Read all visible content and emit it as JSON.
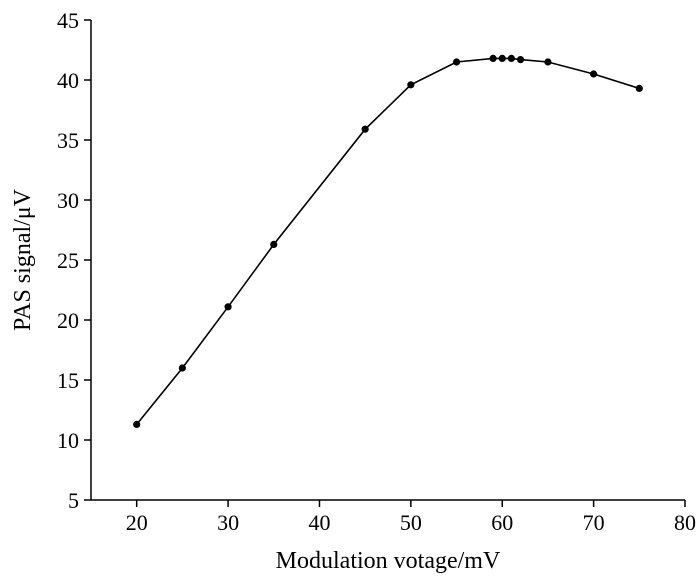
{
  "chart_data": {
    "type": "line",
    "xlabel": "Modulation votage/mV",
    "ylabel": "PAS signal/μV",
    "xlim": [
      15,
      80
    ],
    "ylim": [
      5,
      45
    ],
    "x_ticks": [
      20,
      30,
      40,
      50,
      60,
      70,
      80
    ],
    "y_ticks": [
      5,
      10,
      15,
      20,
      25,
      30,
      35,
      40,
      45
    ],
    "grid": false,
    "series": [
      {
        "color": "#000000",
        "marker": "circle",
        "x": [
          20,
          25,
          30,
          35,
          45,
          50,
          55,
          59,
          60,
          61,
          62,
          65,
          70,
          75
        ],
        "y": [
          11.3,
          16.0,
          21.1,
          26.3,
          35.9,
          39.6,
          41.5,
          41.8,
          41.8,
          41.8,
          41.7,
          41.5,
          40.5,
          39.3
        ]
      }
    ]
  }
}
